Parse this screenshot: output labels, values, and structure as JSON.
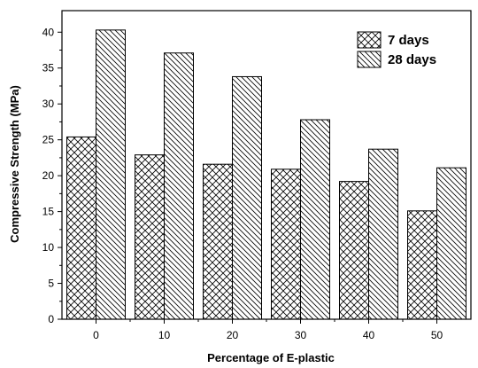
{
  "chart_data": {
    "type": "bar",
    "xlabel": "Percentage of E-plastic",
    "ylabel": "Compressive Strength (MPa)",
    "ylim": [
      0,
      43
    ],
    "yticks": [
      0,
      5,
      10,
      15,
      20,
      25,
      30,
      35,
      40
    ],
    "categories": [
      "0",
      "10",
      "20",
      "30",
      "40",
      "50"
    ],
    "series": [
      {
        "name": "7 days",
        "values": [
          25.4,
          22.9,
          21.6,
          20.9,
          19.2,
          15.1
        ],
        "pattern": "crosshatch"
      },
      {
        "name": "28 days",
        "values": [
          40.3,
          37.1,
          33.8,
          27.8,
          23.7,
          21.1
        ],
        "pattern": "back-diagonal"
      }
    ],
    "legend_position": "top-right",
    "grid": false,
    "colors": {
      "stroke": "#000000",
      "background": "#ffffff"
    }
  }
}
